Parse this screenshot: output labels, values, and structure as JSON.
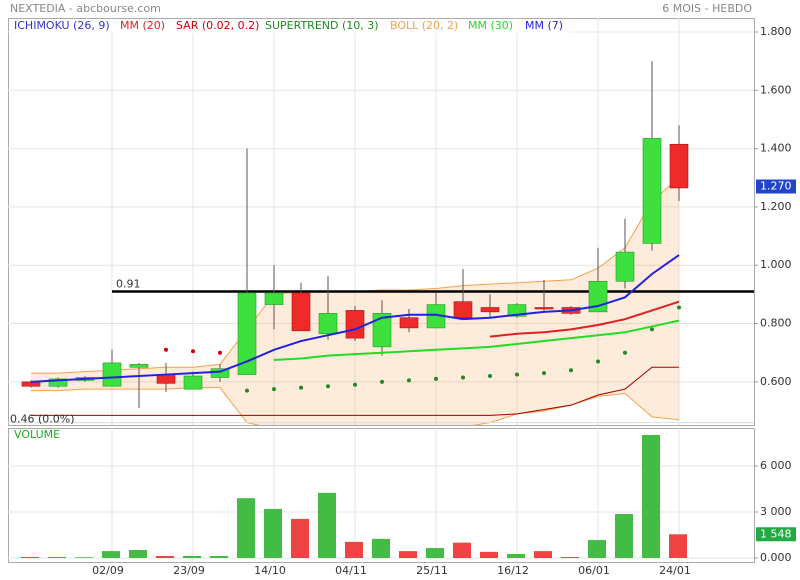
{
  "header": {
    "title": "NEXTEDIA - abcbourse.com",
    "period": "6 MOIS - HEBDO"
  },
  "chart_data": [
    {
      "type": "candlestick",
      "categories": [
        null,
        null,
        null,
        "02/09",
        null,
        null,
        "23/09",
        null,
        null,
        "14/10",
        null,
        null,
        "04/11",
        null,
        null,
        "25/11",
        null,
        null,
        "16/12",
        null,
        null,
        "06/01",
        null,
        null,
        "24/01"
      ],
      "open": [
        0.6,
        0.585,
        0.605,
        0.585,
        0.65,
        0.625,
        0.575,
        0.615,
        0.625,
        0.865,
        0.905,
        0.765,
        0.845,
        0.72,
        0.82,
        0.785,
        0.875,
        0.855,
        0.825,
        0.855,
        0.855,
        0.84,
        0.945,
        1.075,
        1.415
      ],
      "high": [
        0.605,
        0.615,
        0.62,
        0.71,
        0.665,
        0.665,
        0.635,
        0.66,
        1.4,
        1.0,
        0.94,
        0.963,
        0.86,
        0.88,
        0.85,
        0.905,
        0.987,
        0.9,
        0.87,
        0.95,
        0.86,
        1.06,
        1.16,
        1.7,
        1.48
      ],
      "low": [
        0.58,
        0.58,
        0.6,
        0.585,
        0.51,
        0.565,
        0.575,
        0.6,
        0.625,
        0.78,
        0.775,
        0.745,
        0.74,
        0.69,
        0.77,
        0.785,
        0.815,
        0.82,
        0.82,
        0.84,
        0.83,
        0.84,
        0.92,
        1.05,
        1.22
      ],
      "close": [
        0.585,
        0.61,
        0.615,
        0.665,
        0.66,
        0.595,
        0.62,
        0.645,
        0.905,
        0.905,
        0.775,
        0.835,
        0.75,
        0.835,
        0.785,
        0.865,
        0.82,
        0.84,
        0.865,
        0.85,
        0.835,
        0.945,
        1.045,
        1.435,
        1.265
      ],
      "up_color": "#3ee03e",
      "down_color": "#ee2a2a",
      "series": [
        {
          "name": "ICHIMOKU (26, 9)",
          "color": "#3333cc",
          "line_color": "#a00000",
          "kind": "line",
          "values": [
            0.485,
            0.485,
            0.485,
            0.485,
            0.485,
            0.485,
            0.485,
            0.485,
            0.485,
            0.485,
            0.485,
            0.485,
            0.485,
            0.485,
            0.485,
            0.485,
            0.485,
            0.485,
            0.49,
            0.505,
            0.52,
            0.555,
            0.575,
            0.65,
            0.65
          ]
        },
        {
          "name": "MM (20)",
          "color": "#e02020",
          "kind": "line",
          "values": [
            null,
            null,
            null,
            null,
            null,
            null,
            null,
            null,
            null,
            null,
            null,
            null,
            null,
            null,
            null,
            null,
            null,
            0.755,
            0.765,
            0.77,
            0.78,
            0.795,
            0.815,
            0.845,
            0.875
          ]
        },
        {
          "name": "SAR (0.02, 0.2)",
          "color": "#cc0000",
          "kind": "dots",
          "values": [
            null,
            null,
            null,
            null,
            null,
            0.71,
            0.705,
            0.7,
            null,
            null,
            null,
            null,
            null,
            null,
            null,
            null,
            null,
            null,
            null,
            null,
            null,
            null,
            null,
            null,
            null
          ]
        },
        {
          "name": "SUPERTREND (10, 3)",
          "color": "#228822",
          "kind": "dots",
          "values": [
            null,
            null,
            null,
            null,
            null,
            null,
            null,
            null,
            0.57,
            0.575,
            0.58,
            0.585,
            0.59,
            0.6,
            0.605,
            0.61,
            0.615,
            0.62,
            0.625,
            0.63,
            0.64,
            0.67,
            0.7,
            0.78,
            0.855
          ]
        },
        {
          "name": "BOLL (20, 2)",
          "color": "#f5a04a",
          "kind": "band",
          "upper": [
            0.63,
            0.63,
            0.635,
            0.64,
            0.645,
            0.65,
            0.65,
            0.66,
            0.78,
            0.9,
            0.91,
            0.91,
            0.91,
            0.915,
            0.915,
            0.92,
            0.93,
            0.935,
            0.94,
            0.945,
            0.95,
            0.99,
            1.06,
            1.22,
            1.3
          ],
          "lower": [
            0.57,
            0.57,
            0.575,
            0.575,
            0.575,
            0.575,
            0.58,
            0.58,
            0.46,
            0.44,
            0.44,
            0.44,
            0.44,
            0.44,
            0.44,
            0.44,
            0.445,
            0.46,
            0.49,
            0.5,
            0.52,
            0.55,
            0.56,
            0.48,
            0.47
          ]
        },
        {
          "name": "MM (30)",
          "color": "#22dd22",
          "kind": "line",
          "values": [
            null,
            null,
            null,
            null,
            null,
            null,
            null,
            null,
            null,
            0.675,
            0.68,
            0.69,
            0.695,
            0.7,
            0.705,
            0.71,
            0.715,
            0.72,
            0.73,
            0.74,
            0.75,
            0.76,
            0.77,
            0.79,
            0.81
          ]
        },
        {
          "name": "MM (7)",
          "color": "#2222dd",
          "kind": "line",
          "values": [
            0.6,
            0.605,
            0.61,
            0.615,
            0.62,
            0.625,
            0.63,
            0.635,
            0.67,
            0.71,
            0.74,
            0.76,
            0.78,
            0.82,
            0.83,
            0.83,
            0.815,
            0.82,
            0.83,
            0.84,
            0.845,
            0.86,
            0.89,
            0.97,
            1.035
          ]
        }
      ],
      "ylim": [
        0.452,
        1.848
      ],
      "yticks": [
        {
          "value": 0.6,
          "label": "0.600"
        },
        {
          "value": 0.8,
          "label": "0.800"
        },
        {
          "value": 1.0,
          "label": "1.000"
        },
        {
          "value": 1.2,
          "label": "1.200"
        },
        {
          "value": 1.4,
          "label": "1.400"
        },
        {
          "value": 1.6,
          "label": "1.600"
        },
        {
          "value": 1.8,
          "label": "1.800"
        }
      ],
      "grid": true,
      "level": {
        "value": 0.91,
        "label": "0.91"
      },
      "low_level": {
        "value": 0.46,
        "label": "0.46 (0.0%)"
      },
      "last": {
        "value": 1.27,
        "label": "1.270"
      }
    },
    {
      "type": "bar",
      "title": "VOLUME",
      "values": [
        70,
        70,
        50,
        450,
        520,
        130,
        130,
        130,
        3900,
        3200,
        2550,
        4250,
        1050,
        1250,
        450,
        650,
        1000,
        400,
        260,
        450,
        65,
        1170,
        2870,
        8020,
        1548
      ],
      "ylim": [
        -261,
        8478
      ],
      "yticks": [
        {
          "value": 0,
          "label": "0.000"
        },
        {
          "value": 3000,
          "label": "3 000"
        },
        {
          "value": 6000,
          "label": "6 000"
        }
      ],
      "grid": true,
      "last": {
        "value": 1548,
        "label": "1 548"
      }
    }
  ]
}
